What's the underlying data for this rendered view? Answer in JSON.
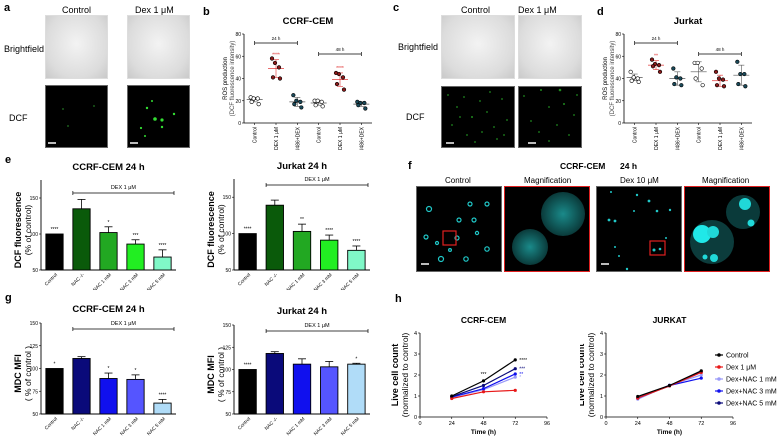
{
  "panels": {
    "a": {
      "label": "a",
      "col_labels": [
        "Control",
        "Dex 1 μM"
      ],
      "row_labels": [
        "Brightfield",
        "DCF"
      ]
    },
    "b": {
      "label": "b"
    },
    "c": {
      "label": "c",
      "col_labels": [
        "Control",
        "Dex 1 μM"
      ],
      "row_labels": [
        "Brightfield",
        "DCF"
      ]
    },
    "d": {
      "label": "d"
    },
    "e": {
      "label": "e"
    },
    "f": {
      "label": "f",
      "title": "CCRF-CEM",
      "time": "24 h",
      "col_labels": [
        "Control",
        "Magnification",
        "Dex 10 μM",
        "Magnification"
      ]
    },
    "g": {
      "label": "g"
    },
    "h": {
      "label": "h"
    }
  },
  "colors": {
    "control_bar": "#000000",
    "nac_minus_green": "#0a5a0a",
    "nac1_green": "#22a822",
    "nac3_green": "#22ee22",
    "nac5_green": "#80f8c8",
    "nac_minus_blue": "#0a0a7a",
    "nac1_blue": "#1010ee",
    "nac3_blue": "#5555ff",
    "nac5_blue": "#b0dcf8",
    "dex_red": "#e81818",
    "dot_control": "#ffffff",
    "dot_dex": "#8b1a1a",
    "dot_ru486": "#1a4a5a",
    "sig_red": "#e03030",
    "dcf_green": "#33dd33",
    "mdc_cyan": "#20c8c8"
  },
  "chart_data": [
    {
      "id": "b",
      "type": "scatter",
      "title": "CCRF-CEM",
      "ylabel": "ROS production",
      "ylabel2": "(DCF fluorescence intensity)",
      "ylim": [
        0,
        80
      ],
      "yticks": [
        0,
        20,
        40,
        60,
        80
      ],
      "categories": [
        "Control",
        "DEX 1 μM",
        "RU486+DEX",
        "Control",
        "DEX 1 μM",
        "RU486+DEX"
      ],
      "groups": [
        {
          "label": "24 h",
          "span": [
            0,
            2
          ]
        },
        {
          "label": "48 h",
          "span": [
            3,
            5
          ]
        }
      ],
      "series": [
        {
          "name": "Control 24h",
          "values": [
            23,
            22,
            22,
            19,
            17
          ],
          "mean": 21,
          "sd": 2
        },
        {
          "name": "DEX 24h",
          "values": [
            58,
            54,
            50,
            41,
            40
          ],
          "mean": 49,
          "sd": 8,
          "sig": "****"
        },
        {
          "name": "RU486+DEX 24h",
          "values": [
            25,
            20,
            19,
            17,
            14
          ],
          "mean": 19,
          "sd": 4
        },
        {
          "name": "Control 48h",
          "values": [
            20,
            20,
            19,
            16,
            15
          ],
          "mean": 18,
          "sd": 2
        },
        {
          "name": "DEX 48h",
          "values": [
            45,
            44,
            41,
            35,
            30
          ],
          "mean": 39,
          "sd": 6,
          "sig": "****"
        },
        {
          "name": "RU486+DEX 48h",
          "values": [
            19,
            18,
            18,
            16,
            13
          ],
          "mean": 17,
          "sd": 2
        }
      ]
    },
    {
      "id": "d",
      "type": "scatter",
      "title": "Jurkat",
      "ylabel": "ROS production",
      "ylabel2": "(DCF fluorescence intensity)",
      "ylim": [
        0,
        80
      ],
      "yticks": [
        0,
        20,
        40,
        60,
        80
      ],
      "categories": [
        "Control",
        "DEX 1 μM",
        "RU486+DEX",
        "Control",
        "DEX 1 μM",
        "RU486+DEX"
      ],
      "groups": [
        {
          "label": "24 h",
          "span": [
            0,
            2
          ]
        },
        {
          "label": "48 h",
          "span": [
            3,
            5
          ]
        }
      ],
      "series": [
        {
          "name": "Control 24h",
          "values": [
            46,
            41,
            40,
            38,
            37
          ],
          "mean": 41,
          "sd": 3
        },
        {
          "name": "DEX 24h",
          "values": [
            57,
            53,
            52,
            51,
            46
          ],
          "mean": 52,
          "sd": 4,
          "sig": "**"
        },
        {
          "name": "RU486+DEX 24h",
          "values": [
            49,
            41,
            40,
            35,
            34
          ],
          "mean": 40,
          "sd": 6
        },
        {
          "name": "Control 48h",
          "values": [
            54,
            54,
            49,
            40,
            34
          ],
          "mean": 46,
          "sd": 9
        },
        {
          "name": "DEX 48h",
          "values": [
            46,
            40,
            39,
            34,
            33
          ],
          "mean": 38,
          "sd": 5
        },
        {
          "name": "RU486+DEX 48h",
          "values": [
            55,
            44,
            44,
            35,
            33
          ],
          "mean": 43,
          "sd": 9
        }
      ]
    },
    {
      "id": "e1",
      "type": "bar",
      "title": "CCRF-CEM 24 h",
      "ylabel": "DCF fluorescence",
      "ylabel2": "(% of control)",
      "ylim": [
        50,
        175
      ],
      "yticks": [
        50,
        100,
        150
      ],
      "bracket": "DEX 1 μM",
      "categories": [
        "Control",
        "NAC -/-",
        "NAC 1 mM",
        "NAC 3 mM",
        "NAC 5 mM"
      ],
      "values": [
        100,
        135,
        102,
        86,
        68
      ],
      "errors": [
        0,
        13,
        8,
        6,
        10
      ],
      "sig": [
        "****",
        "",
        "*",
        "***",
        "****"
      ]
    },
    {
      "id": "e2",
      "type": "bar",
      "title": "Jurkat 24 h",
      "ylabel": "DCF fluorescence",
      "ylabel2": "(% of control)",
      "ylim": [
        50,
        175
      ],
      "yticks": [
        50,
        100,
        150
      ],
      "bracket": "DEX 1 μM",
      "categories": [
        "Control",
        "NAC -/-",
        "NAC 1 mM",
        "NAC 3 mM",
        "NAC 5 mM"
      ],
      "values": [
        100,
        139,
        103,
        91,
        77
      ],
      "errors": [
        0,
        7,
        10,
        7,
        6
      ],
      "sig": [
        "****",
        "",
        "**",
        "****",
        "****"
      ]
    },
    {
      "id": "g1",
      "type": "bar",
      "title": "CCRF-CEM 24 h",
      "ylabel": "MDC MFI",
      "ylabel2": "( % of control )",
      "ylim": [
        50,
        150
      ],
      "yticks": [
        50,
        75,
        100,
        125,
        150
      ],
      "bracket": "DEX 1 μM",
      "categories": [
        "Control",
        "NAC -/-",
        "NAC 1 mM",
        "NAC 3 mM",
        "NAC 5 mM"
      ],
      "values": [
        100,
        111,
        89,
        88,
        62
      ],
      "errors": [
        0,
        2,
        6,
        5,
        4
      ],
      "sig": [
        "*",
        "",
        "*",
        "*",
        "****"
      ]
    },
    {
      "id": "g2",
      "type": "bar",
      "title": "Jurkat  24 h",
      "ylabel": "MDC MFI",
      "ylabel2": "( % of control )",
      "ylim": [
        50,
        150
      ],
      "yticks": [
        50,
        75,
        100,
        125,
        150
      ],
      "bracket": "DEX 1 μM",
      "categories": [
        "Control",
        "NAC -/-",
        "NAC 1 mM",
        "NAC 3 mM",
        "NAC 5 mM"
      ],
      "values": [
        100,
        118,
        106,
        103,
        106
      ],
      "errors": [
        0,
        2,
        6,
        6,
        1
      ],
      "sig": [
        "****",
        "",
        "",
        "",
        "*"
      ]
    },
    {
      "id": "h1",
      "type": "line",
      "title": "CCRF-CEM",
      "xlabel": "Time (h)",
      "ylabel": "Live cell count",
      "ylabel2": "(normalized to control)",
      "xlim": [
        0,
        96
      ],
      "ylim": [
        0,
        4
      ],
      "xticks": [
        0,
        24,
        48,
        72,
        96
      ],
      "yticks": [
        0,
        1,
        2,
        3,
        4
      ],
      "x": [
        24,
        48,
        72
      ],
      "series": [
        {
          "name": "Control",
          "values": [
            1.0,
            1.72,
            2.72
          ],
          "sig": "****"
        },
        {
          "name": "Dex 1 μM",
          "values": [
            0.88,
            1.2,
            1.27
          ]
        },
        {
          "name": "Dex+NAC 1 mM",
          "values": [
            0.93,
            1.3,
            1.9
          ],
          "sig": "*"
        },
        {
          "name": "Dex+NAC 3 mM",
          "values": [
            0.95,
            1.35,
            2.05
          ],
          "sig": "**"
        },
        {
          "name": "Dex+NAC 5 mM",
          "values": [
            0.97,
            1.5,
            2.3
          ],
          "sig": "***"
        }
      ],
      "annotations": [
        {
          "x": 48,
          "text": "***"
        }
      ]
    },
    {
      "id": "h2",
      "type": "line",
      "title": "JURKAT",
      "xlabel": "Time (h)",
      "ylabel": "Live cell count",
      "ylabel2": "(normalized to control)",
      "xlim": [
        0,
        96
      ],
      "ylim": [
        0,
        4
      ],
      "xticks": [
        0,
        24,
        48,
        72,
        96
      ],
      "yticks": [
        0,
        1,
        2,
        3,
        4
      ],
      "x": [
        24,
        48,
        72
      ],
      "series": [
        {
          "name": "Control",
          "values": [
            0.98,
            1.5,
            2.2
          ]
        },
        {
          "name": "Dex 1 μM",
          "values": [
            0.9,
            1.48,
            2.12
          ]
        },
        {
          "name": "Dex+NAC 1 mM",
          "values": [
            0.85,
            1.52,
            2.0
          ]
        },
        {
          "name": "Dex+NAC 3 mM",
          "values": [
            0.9,
            1.5,
            1.85
          ]
        },
        {
          "name": "Dex+NAC 5 mM",
          "values": [
            0.92,
            1.48,
            2.15
          ]
        }
      ],
      "legend": [
        "Control",
        "Dex 1 μM",
        "Dex+NAC 1 mM",
        "Dex+NAC 3 mM",
        "Dex+NAC 5 mM"
      ],
      "legend_colors": [
        "#000000",
        "#e81818",
        "#9a9af8",
        "#1010ee",
        "#0a0a7a"
      ]
    }
  ]
}
